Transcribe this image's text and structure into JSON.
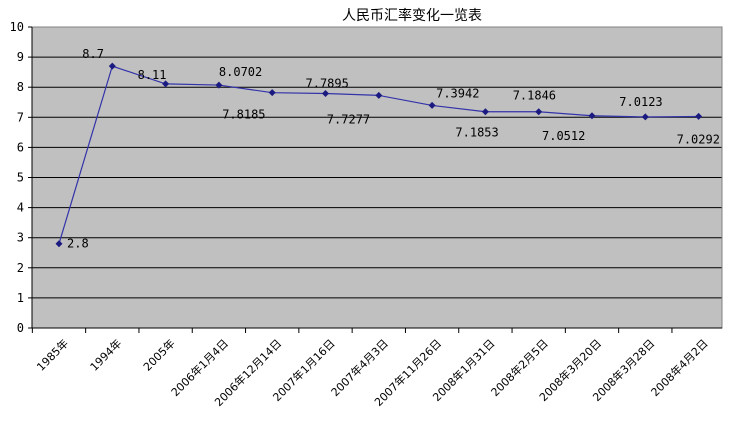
{
  "chart_data": {
    "type": "line",
    "title": "人民币汇率变化一览表",
    "xlabel": "",
    "ylabel": "",
    "categories": [
      "1985年",
      "1994年",
      "2005年",
      "2006年1月4日",
      "2006年12月14日",
      "2007年1月16日",
      "2007年4月3日",
      "2007年11月26日",
      "2008年1月31日",
      "2008年2月5日",
      "2008年3月20日",
      "2008年3月28日",
      "2008年4月2日"
    ],
    "series": [
      {
        "values": [
          2.8,
          8.7,
          8.11,
          8.0702,
          7.8185,
          7.7895,
          7.7277,
          7.3942,
          7.1853,
          7.1846,
          7.0512,
          7.0123,
          7.0292
        ]
      }
    ],
    "data_labels": [
      "2.8",
      "8.7",
      "8.11",
      "8.0702",
      "7.8185",
      "7.7895",
      "7.7277",
      "7.3942",
      "7.1853",
      "7.1846",
      "7.0512",
      "7.0123",
      "7.0292"
    ],
    "ylim": [
      0,
      10
    ],
    "yticks": [
      0,
      1,
      2,
      3,
      4,
      5,
      6,
      7,
      8,
      9,
      10
    ],
    "grid": true,
    "legend": "none",
    "colors": {
      "plot_bg": "#c0c0c0",
      "line": "#3333aa",
      "marker": "#1a1a80",
      "grid": "#000000"
    }
  }
}
